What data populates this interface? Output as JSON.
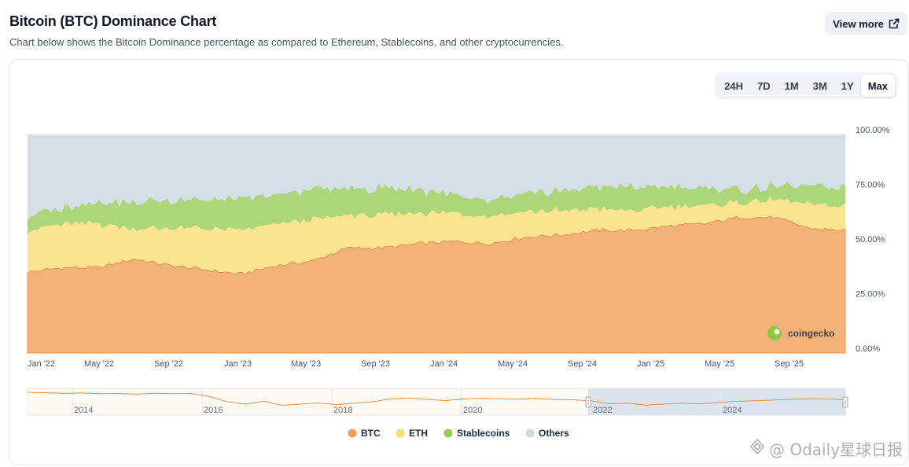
{
  "header": {
    "title": "Bitcoin (BTC) Dominance Chart",
    "subtitle": "Chart below shows the Bitcoin Dominance percentage as compared to Ethereum, Stablecoins, and other cryptocurrencies.",
    "view_more_label": "View more",
    "view_more_icon": "external-link-icon"
  },
  "range_selector": {
    "options": [
      "24H",
      "7D",
      "1M",
      "3M",
      "1Y",
      "Max"
    ],
    "selected": "Max"
  },
  "brand": {
    "label": "coingecko",
    "icon": "coingecko-logo-icon"
  },
  "watermark": {
    "label": "@ Odaily星球日报",
    "icon": "odaily-logo-icon"
  },
  "colors": {
    "btc": "#f2b27a",
    "btc_line": "#e8914a",
    "eth": "#fbe48f",
    "stablecoins": "#abd67a",
    "others": "#d6dfe8",
    "navigator_line": "#e8914a",
    "navigator_selection": "#d7deeb"
  },
  "chart_data": {
    "type": "area",
    "stacked": true,
    "x_ticks": [
      "Jan '22",
      "May '22",
      "Sep '22",
      "Jan '23",
      "May '23",
      "Sep '23",
      "Jan '24",
      "May '24",
      "Sep '24",
      "Jan '25",
      "May '25",
      "Sep '25"
    ],
    "y_ticks": [
      "0.00%",
      "25.00%",
      "50.00%",
      "75.00%",
      "100.00%"
    ],
    "ylim": [
      0,
      100
    ],
    "x": [
      "Jan '22",
      "Mar '22",
      "May '22",
      "Jul '22",
      "Sep '22",
      "Nov '22",
      "Jan '23",
      "Mar '23",
      "May '23",
      "Jul '23",
      "Sep '23",
      "Nov '23",
      "Jan '24",
      "Mar '24",
      "May '24",
      "Jul '24",
      "Sep '24",
      "Nov '24",
      "Jan '25",
      "Mar '25",
      "May '25",
      "Jul '25",
      "Sep '25",
      "Nov '25"
    ],
    "series": [
      {
        "name": "BTC",
        "color": "#f2b27a",
        "values": [
          37,
          39,
          39,
          43,
          40,
          38,
          36,
          40,
          42,
          48,
          48,
          50,
          51,
          50,
          53,
          54,
          56,
          56,
          58,
          59,
          62,
          62,
          57,
          56
        ]
      },
      {
        "name": "ETH",
        "color": "#fbe48f",
        "values": [
          19,
          20,
          20,
          14,
          17,
          19,
          20,
          19,
          19,
          15,
          15,
          14,
          13,
          13,
          12,
          11,
          10,
          9,
          9,
          8,
          7,
          8,
          11,
          11
        ]
      },
      {
        "name": "Stablecoins",
        "color": "#abd67a",
        "values": [
          7,
          7,
          10,
          12,
          13,
          13,
          14,
          13,
          14,
          12,
          12,
          11,
          8,
          7,
          8,
          9,
          10,
          11,
          9,
          8,
          6,
          6,
          8,
          9
        ]
      },
      {
        "name": "Others",
        "color": "#d6dfe8",
        "values": [
          37,
          34,
          31,
          31,
          30,
          30,
          30,
          28,
          25,
          25,
          25,
          25,
          28,
          30,
          27,
          26,
          24,
          24,
          24,
          25,
          25,
          24,
          24,
          24
        ]
      }
    ],
    "legend": [
      "BTC",
      "ETH",
      "Stablecoins",
      "Others"
    ],
    "legend_position": "bottom",
    "grid": false,
    "navigator": {
      "x_ticks": [
        "2014",
        "2016",
        "2018",
        "2020",
        "2022",
        "2024"
      ],
      "btc_values": [
        90,
        88,
        86,
        87,
        84,
        85,
        82,
        86,
        84,
        85,
        72,
        50,
        40,
        52,
        35,
        40,
        45,
        38,
        44,
        50,
        62,
        66,
        60,
        55,
        62,
        64,
        63,
        61,
        64,
        60,
        58,
        54,
        42,
        44,
        36,
        40,
        44,
        41,
        47,
        52,
        54,
        57,
        60,
        63,
        62,
        58
      ],
      "selected_range": [
        "Jan '22",
        "Nov '25"
      ]
    }
  }
}
